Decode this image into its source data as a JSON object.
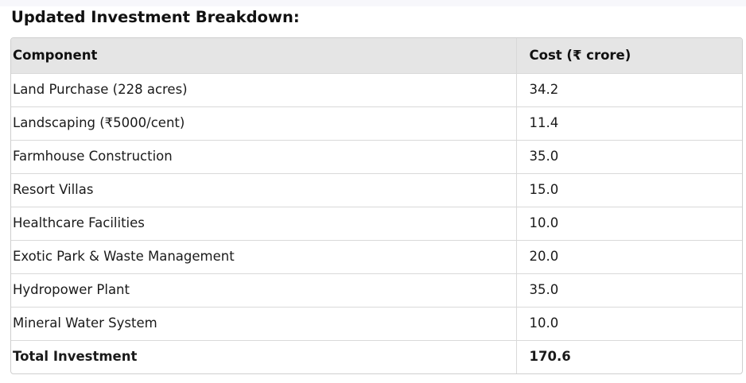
{
  "heading": {
    "title": "Updated Investment Breakdown",
    "suffix": ":"
  },
  "table": {
    "headers": [
      "Component",
      "Cost (₹ crore)"
    ],
    "rows": [
      [
        "Land Purchase (228 acres)",
        "34.2"
      ],
      [
        "Landscaping (₹5000/cent)",
        "11.4"
      ],
      [
        "Farmhouse Construction",
        "35.0"
      ],
      [
        "Resort Villas",
        "15.0"
      ],
      [
        "Healthcare Facilities",
        "10.0"
      ],
      [
        "Exotic Park & Waste Management",
        "20.0"
      ],
      [
        "Hydropower Plant",
        "35.0"
      ],
      [
        "Mineral Water System",
        "10.0"
      ],
      [
        "Total Investment",
        "170.6"
      ]
    ]
  }
}
